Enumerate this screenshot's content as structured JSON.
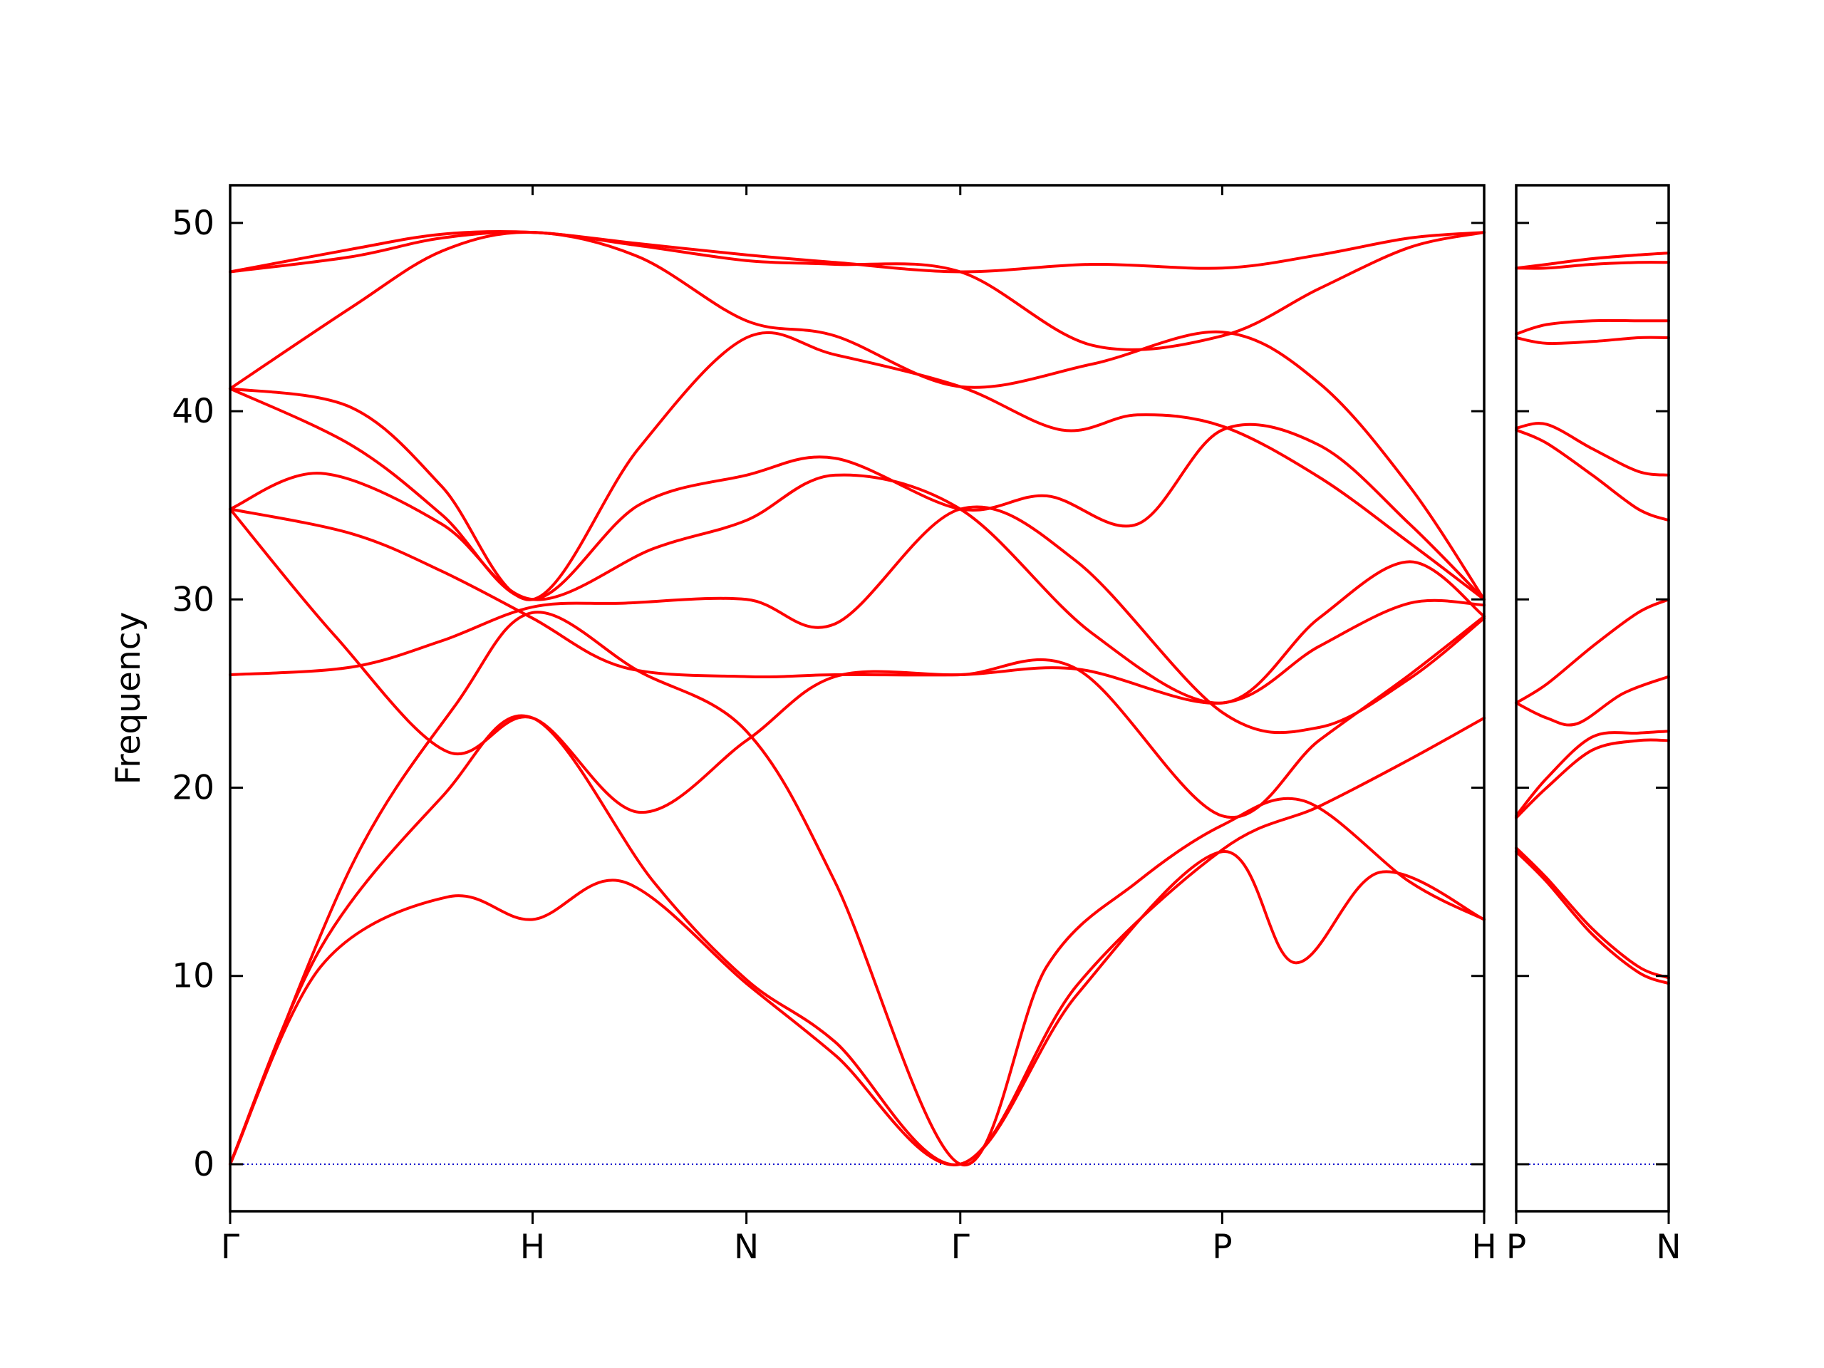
{
  "chart_data": {
    "type": "line",
    "title": "",
    "ylabel": "Frequency",
    "xlabel": "",
    "ylim": [
      -2.5,
      52
    ],
    "yticks": [
      0,
      10,
      20,
      30,
      40,
      50
    ],
    "grid": false,
    "colors": {
      "bands": "#ff0000",
      "zero_line": "#0000cc"
    },
    "panels": [
      {
        "xticks": [
          {
            "label": "Γ",
            "x": 0.0
          },
          {
            "label": "H",
            "x": 1.0
          },
          {
            "label": "N",
            "x": 1.7071
          },
          {
            "label": "Γ",
            "x": 2.4142
          },
          {
            "label": "P",
            "x": 3.2802
          },
          {
            "label": "H",
            "x": 4.1463
          }
        ],
        "xlim": [
          0,
          4.1463
        ],
        "series": [
          {
            "x": [
              0,
              0.3,
              0.72,
              1.0,
              1.3,
              1.7071,
              2.0,
              2.4142,
              2.8,
              3.2802,
              3.52,
              3.8,
              4.1463
            ],
            "y": [
              0,
              10.5,
              14.2,
              13.0,
              15.0,
              9.6,
              5.8,
              0,
              9.0,
              16.6,
              10.7,
              15.5,
              13.0
            ]
          },
          {
            "x": [
              0,
              0.3,
              0.7,
              1.0,
              1.4,
              1.7071,
              2.0,
              2.4142,
              2.8,
              3.2802,
              3.6,
              3.9,
              4.1463
            ],
            "y": [
              0,
              11.5,
              19.5,
              23.7,
              15.0,
              9.8,
              6.5,
              0,
              9.5,
              16.7,
              19.0,
              21.5,
              23.7
            ]
          },
          {
            "x": [
              0,
              0.4,
              0.75,
              1.0,
              1.35,
              1.7071,
              2.0,
              2.4142,
              2.7,
              3.0,
              3.2802,
              3.55,
              3.9,
              4.1463
            ],
            "y": [
              0,
              15.8,
              24.5,
              29.3,
              26.2,
              23.0,
              15.0,
              0,
              10.5,
              15.0,
              18.0,
              19.3,
              15.0,
              13.0
            ]
          },
          {
            "x": [
              0,
              0.35,
              0.72,
              1.0,
              1.35,
              1.7071,
              2.0,
              2.4142,
              2.8,
              3.2802,
              3.6,
              3.9,
              4.1463
            ],
            "y": [
              34.8,
              28.0,
              21.9,
              23.7,
              18.7,
              22.5,
              25.9,
              26.0,
              26.3,
              18.5,
              22.5,
              26.0,
              29.1
            ]
          },
          {
            "x": [
              0,
              0.4,
              0.7,
              1.0,
              1.3,
              1.7071,
              2.0,
              2.4142,
              2.8,
              3.2802,
              3.6,
              3.9,
              4.1463
            ],
            "y": [
              26.0,
              26.4,
              27.8,
              29.6,
              29.8,
              30.0,
              28.7,
              34.8,
              32.0,
              24.0,
              23.2,
              25.8,
              29.0
            ]
          },
          {
            "x": [
              0,
              0.4,
              0.7,
              1.0,
              1.3,
              1.7071,
              2.0,
              2.4142,
              2.8,
              3.2802,
              3.6,
              3.9,
              4.1463
            ],
            "y": [
              34.8,
              33.5,
              31.5,
              29.0,
              26.4,
              25.9,
              26.0,
              26.0,
              26.3,
              24.5,
              27.5,
              29.8,
              29.7
            ]
          },
          {
            "x": [
              0,
              0.3,
              0.7,
              1.0,
              1.4,
              1.7071,
              2.0,
              2.4142,
              2.85,
              3.2802,
              3.6,
              3.9,
              4.1463
            ],
            "y": [
              34.8,
              36.7,
              34.0,
              30.0,
              32.7,
              34.2,
              36.6,
              34.8,
              28.2,
              24.5,
              29.0,
              32.0,
              29.1
            ]
          },
          {
            "x": [
              0,
              0.4,
              0.7,
              1.0,
              1.35,
              1.7071,
              2.0,
              2.4142,
              2.7,
              3.0,
              3.2802,
              3.6,
              3.9,
              4.1463
            ],
            "y": [
              41.2,
              38.2,
              34.5,
              30.0,
              35.0,
              36.6,
              37.5,
              34.8,
              35.5,
              34.0,
              39.0,
              38.2,
              34.0,
              30.0
            ]
          },
          {
            "x": [
              0,
              0.4,
              0.7,
              1.0,
              1.35,
              1.7071,
              2.0,
              2.4142,
              2.75,
              3.0,
              3.2802,
              3.6,
              3.9,
              4.1463
            ],
            "y": [
              41.2,
              40.2,
              36.0,
              30.0,
              38.0,
              43.9,
              43.0,
              41.3,
              39.0,
              39.8,
              39.2,
              36.5,
              33.0,
              30.0
            ]
          },
          {
            "x": [
              0,
              0.4,
              0.7,
              1.0,
              1.35,
              1.7071,
              2.0,
              2.4142,
              2.85,
              3.2802,
              3.6,
              3.9,
              4.1463
            ],
            "y": [
              41.2,
              45.5,
              48.5,
              49.5,
              48.2,
              44.8,
              44.0,
              41.3,
              42.5,
              44.2,
              41.5,
              36.0,
              30.0
            ]
          },
          {
            "x": [
              0,
              0.4,
              0.7,
              1.0,
              1.35,
              1.7071,
              2.0,
              2.4142,
              2.85,
              3.2802,
              3.6,
              3.9,
              4.1463
            ],
            "y": [
              47.4,
              48.2,
              49.2,
              49.5,
              48.8,
              48.0,
              47.8,
              47.4,
              43.5,
              44.0,
              46.5,
              48.7,
              49.5
            ]
          },
          {
            "x": [
              0,
              0.4,
              0.7,
              1.0,
              1.35,
              1.7071,
              2.0,
              2.4142,
              2.85,
              3.2802,
              3.6,
              3.9,
              4.1463
            ],
            "y": [
              47.4,
              48.6,
              49.4,
              49.5,
              48.9,
              48.3,
              47.9,
              47.4,
              47.8,
              47.6,
              48.3,
              49.2,
              49.5
            ]
          }
        ]
      },
      {
        "xticks": [
          {
            "label": "P",
            "x": 0.0
          },
          {
            "label": "N",
            "x": 0.5
          }
        ],
        "xlim": [
          0,
          0.5
        ],
        "series": [
          {
            "x": [
              0,
              0.1,
              0.25,
              0.4,
              0.5
            ],
            "y": [
              16.6,
              15.0,
              12.2,
              10.2,
              9.6
            ]
          },
          {
            "x": [
              0,
              0.1,
              0.25,
              0.4,
              0.5
            ],
            "y": [
              16.8,
              15.2,
              12.5,
              10.5,
              9.9
            ]
          },
          {
            "x": [
              0,
              0.1,
              0.25,
              0.4,
              0.5
            ],
            "y": [
              18.4,
              20.0,
              22.0,
              22.5,
              22.5
            ]
          },
          {
            "x": [
              0,
              0.1,
              0.25,
              0.4,
              0.5
            ],
            "y": [
              18.5,
              20.5,
              22.7,
              22.9,
              23.0
            ]
          },
          {
            "x": [
              0,
              0.1,
              0.2,
              0.35,
              0.5
            ],
            "y": [
              24.5,
              23.7,
              23.4,
              25.0,
              25.9
            ]
          },
          {
            "x": [
              0,
              0.1,
              0.25,
              0.4,
              0.5
            ],
            "y": [
              24.5,
              25.5,
              27.5,
              29.3,
              30.0
            ]
          },
          {
            "x": [
              0,
              0.1,
              0.25,
              0.4,
              0.5
            ],
            "y": [
              39.0,
              38.3,
              36.6,
              34.8,
              34.2
            ]
          },
          {
            "x": [
              0,
              0.1,
              0.25,
              0.4,
              0.5
            ],
            "y": [
              39.1,
              39.3,
              38.0,
              36.8,
              36.6
            ]
          },
          {
            "x": [
              0,
              0.1,
              0.25,
              0.4,
              0.5
            ],
            "y": [
              43.9,
              43.6,
              43.7,
              43.9,
              43.9
            ]
          },
          {
            "x": [
              0,
              0.1,
              0.25,
              0.4,
              0.5
            ],
            "y": [
              44.1,
              44.6,
              44.8,
              44.8,
              44.8
            ]
          },
          {
            "x": [
              0,
              0.1,
              0.25,
              0.4,
              0.5
            ],
            "y": [
              47.6,
              47.6,
              47.8,
              47.9,
              47.9
            ]
          },
          {
            "x": [
              0,
              0.1,
              0.25,
              0.4,
              0.5
            ],
            "y": [
              47.6,
              47.8,
              48.1,
              48.3,
              48.4
            ]
          }
        ]
      }
    ]
  }
}
